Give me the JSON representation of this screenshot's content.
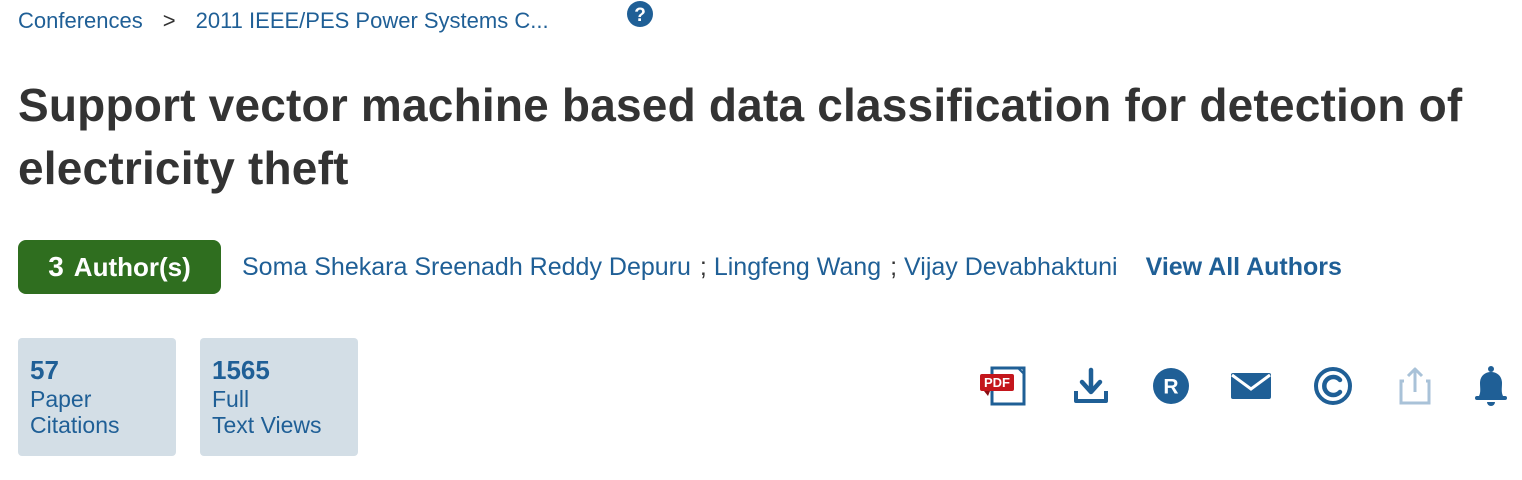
{
  "breadcrumb": {
    "items": [
      {
        "label": "Conferences"
      },
      {
        "label": "2011 IEEE/PES Power Systems C..."
      }
    ],
    "separator": ">"
  },
  "help": {
    "icon": "help-question-icon"
  },
  "paper": {
    "title": "Support vector machine based data classification for detection of electricity theft"
  },
  "authors": {
    "badge_count": "3",
    "badge_label": "Author(s)",
    "names": [
      "Soma Shekara Sreenadh Reddy Depuru",
      "Lingfeng Wang",
      "Vijay Devabhaktuni"
    ],
    "separator": ";",
    "view_all_label": "View All Authors"
  },
  "metrics": [
    {
      "value": "57",
      "label_line1": "Paper",
      "label_line2": "Citations"
    },
    {
      "value": "1565",
      "label_line1": "Full",
      "label_line2": "Text Views"
    }
  ],
  "actions": {
    "pdf_label": "PDF",
    "icons": [
      "pdf-icon",
      "download-icon",
      "rights-icon",
      "email-icon",
      "copyright-icon",
      "share-icon",
      "alert-bell-icon"
    ]
  },
  "colors": {
    "link": "#1f5f96",
    "badge": "#2f6e1f",
    "metric_bg": "#d3dee6",
    "pdf_red": "#c4161c",
    "share_disabled": "#a9c2d8"
  }
}
